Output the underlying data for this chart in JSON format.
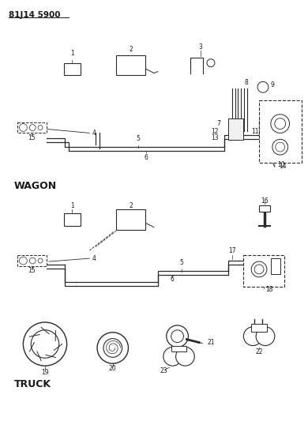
{
  "title": "81J14 5900",
  "bg_color": "#ffffff",
  "line_color": "#2a2a2a",
  "text_color": "#1a1a1a",
  "wagon_label": "WAGON",
  "truck_label": "TRUCK"
}
